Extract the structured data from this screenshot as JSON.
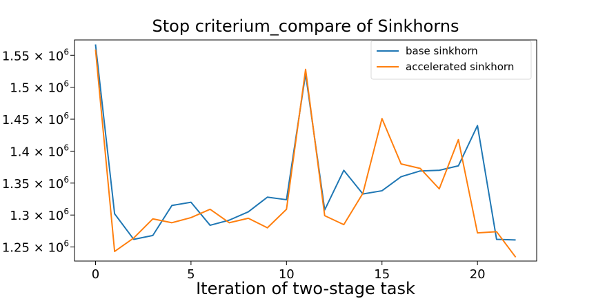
{
  "chart_data": {
    "type": "line",
    "title": "Stop criterium_compare of Sinkhorns",
    "xlabel": "Iteration of two-stage task",
    "ylabel": "",
    "xlim": [
      -1.1,
      23.1
    ],
    "ylim": [
      1228000,
      1574000
    ],
    "x_ticks": [
      0,
      5,
      10,
      15,
      20
    ],
    "y_ticks": [
      {
        "value": 1250000,
        "mantissa": "1.25",
        "exp": "6"
      },
      {
        "value": 1300000,
        "mantissa": "1.3",
        "exp": "6"
      },
      {
        "value": 1350000,
        "mantissa": "1.35",
        "exp": "6"
      },
      {
        "value": 1400000,
        "mantissa": "1.4",
        "exp": "6"
      },
      {
        "value": 1450000,
        "mantissa": "1.45",
        "exp": "6"
      },
      {
        "value": 1500000,
        "mantissa": "1.5",
        "exp": "6"
      },
      {
        "value": 1550000,
        "mantissa": "1.55",
        "exp": "6"
      }
    ],
    "y_tick_times": "×",
    "y_tick_base": "10",
    "grid": false,
    "legend_position": "top-right",
    "x": [
      0,
      1,
      2,
      3,
      4,
      5,
      6,
      7,
      8,
      9,
      10,
      11,
      12,
      13,
      14,
      15,
      16,
      17,
      18,
      19,
      20,
      21,
      22
    ],
    "series": [
      {
        "name": "base sinkhorn",
        "color": "#1f77b4",
        "values": [
          1567000,
          1302000,
          1262000,
          1268000,
          1315000,
          1320000,
          1284000,
          1292000,
          1305000,
          1328000,
          1324000,
          1521000,
          1308000,
          1370000,
          1333000,
          1338000,
          1360000,
          1369000,
          1370000,
          1377000,
          1440000,
          1262000,
          1261000
        ]
      },
      {
        "name": "accelerated sinkhorn",
        "color": "#ff7f0e",
        "values": [
          1559000,
          1243000,
          1264000,
          1294000,
          1288000,
          1296000,
          1309000,
          1288000,
          1295000,
          1280000,
          1309000,
          1528000,
          1299000,
          1285000,
          1334000,
          1451000,
          1380000,
          1373000,
          1341000,
          1418000,
          1272000,
          1274000,
          1234000
        ]
      }
    ]
  }
}
